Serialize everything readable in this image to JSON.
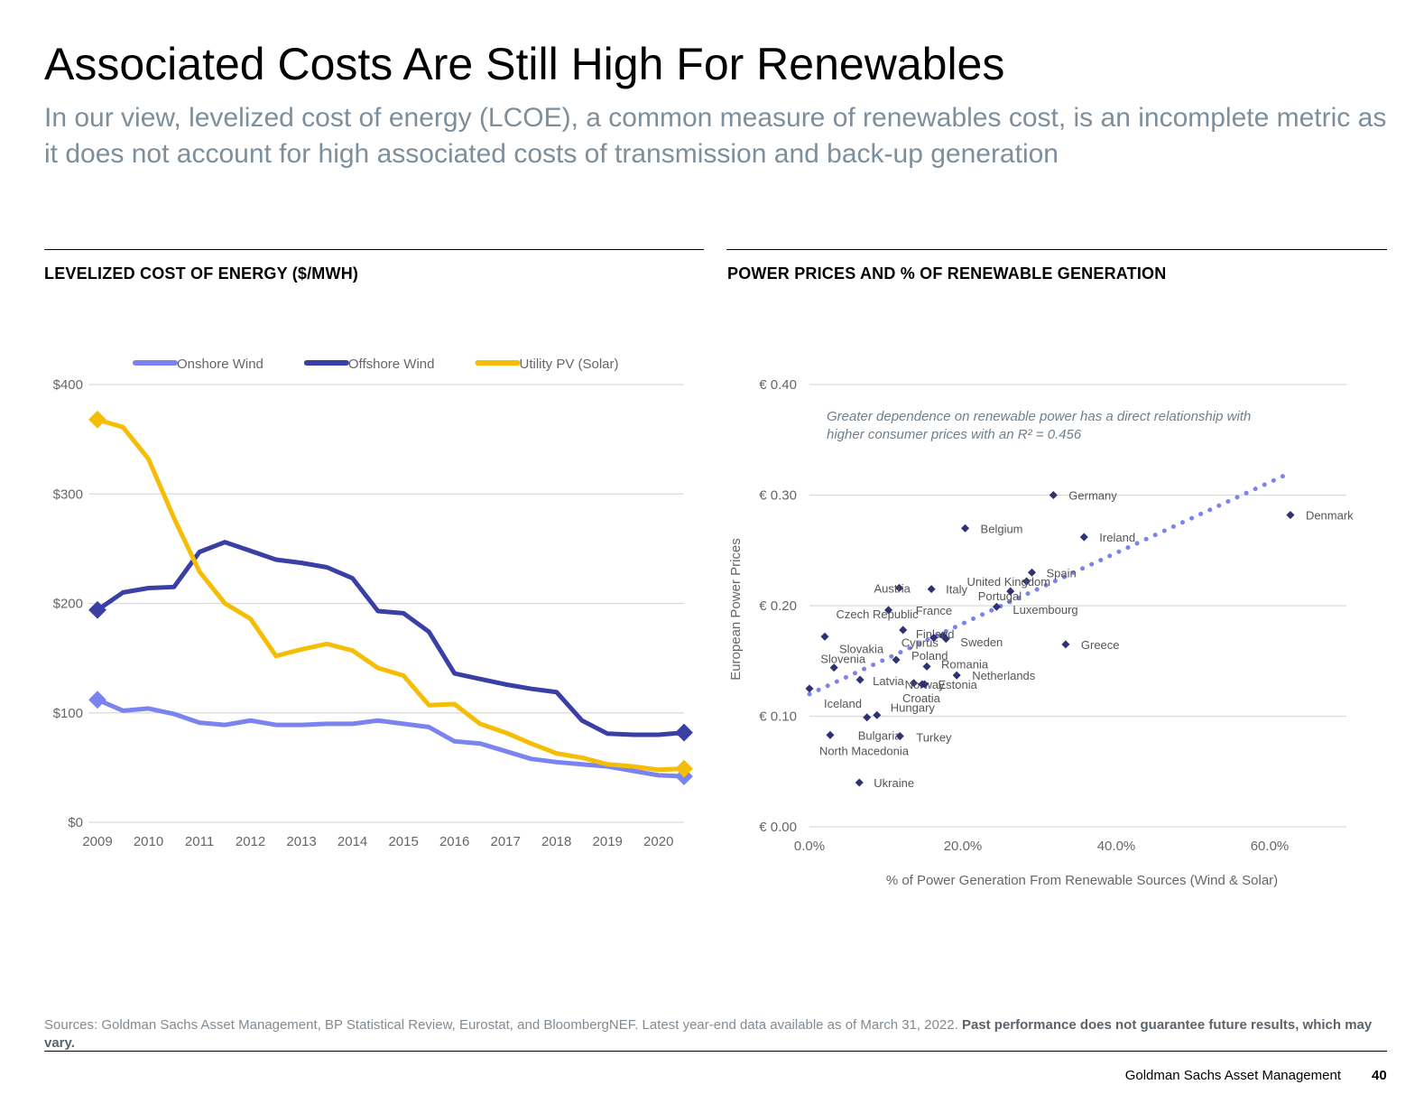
{
  "page": {
    "title": "Associated Costs Are Still High For Renewables",
    "subtitle": "In our view, levelized cost of energy (LCOE), a common measure of renewables cost, is an incomplete metric as it does not account for high associated costs of transmission and back-up generation",
    "footnote_plain": "Sources: Goldman Sachs Asset Management, BP Statistical Review, Eurostat, and BloombergNEF. Latest year-end data available as of March 31, 2022.",
    "footnote_bold": "Past performance does not guarantee future results, which may vary.",
    "footer_company": "Goldman Sachs Asset Management",
    "footer_page": "40"
  },
  "colors": {
    "onshore": "#7b83f0",
    "offshore": "#3a3fa6",
    "solar": "#f5bd06",
    "grid": "#d9d9d9",
    "point": "#2e3273",
    "trend": "#7b83f0"
  },
  "chart_data": [
    {
      "type": "line",
      "title": "LEVELIZED COST OF ENERGY ($/MWH)",
      "x": [
        2009,
        2009.5,
        2010,
        2010.5,
        2011,
        2011.5,
        2012,
        2012.5,
        2013,
        2013.5,
        2014,
        2014.5,
        2015,
        2015.5,
        2016,
        2016.5,
        2017,
        2017.5,
        2018,
        2018.5,
        2019,
        2019.5,
        2020,
        2020.5
      ],
      "x_ticks": [
        "2009",
        "2010",
        "2011",
        "2012",
        "2013",
        "2014",
        "2015",
        "2016",
        "2017",
        "2018",
        "2019",
        "2020"
      ],
      "y_ticks": [
        "$0",
        "$100",
        "$200",
        "$300",
        "$400"
      ],
      "ylim": [
        0,
        400
      ],
      "grid": true,
      "legend": "top",
      "series": [
        {
          "name": "Onshore Wind",
          "key": "onshore",
          "values": [
            112,
            102,
            104,
            99,
            91,
            89,
            93,
            89,
            89,
            90,
            90,
            93,
            90,
            87,
            74,
            72,
            65,
            58,
            55,
            53,
            51,
            47,
            43,
            42
          ]
        },
        {
          "name": "Offshore Wind",
          "key": "offshore",
          "values": [
            194,
            210,
            214,
            215,
            247,
            256,
            248,
            240,
            237,
            233,
            223,
            193,
            191,
            174,
            136,
            131,
            126,
            122,
            119,
            93,
            81,
            80,
            80,
            82
          ]
        },
        {
          "name": "Utility PV (Solar)",
          "key": "solar",
          "values": [
            368,
            361,
            332,
            278,
            229,
            200,
            186,
            152,
            158,
            163,
            157,
            141,
            134,
            107,
            108,
            90,
            82,
            72,
            63,
            59,
            53,
            51,
            48,
            49
          ]
        }
      ]
    },
    {
      "type": "scatter",
      "title": "POWER PRICES AND % OF RENEWABLE GENERATION",
      "xlabel": "% of Power Generation From Renewable Sources (Wind & Solar)",
      "ylabel": "European Power Prices",
      "xlim": [
        0,
        0.7
      ],
      "ylim": [
        0,
        0.4
      ],
      "x_ticks": [
        "0.0%",
        "20.0%",
        "40.0%",
        "60.0%"
      ],
      "y_ticks": [
        "€ 0.00",
        "€ 0.10",
        "€ 0.20",
        "€ 0.30",
        "€ 0.40"
      ],
      "annotation": [
        "Greater dependence on renewable power has a direct relationship with",
        "higher consumer prices with an R² = 0.456"
      ],
      "trendline": {
        "x": [
          0,
          0.62
        ],
        "y": [
          0.12,
          0.318
        ]
      },
      "points": [
        {
          "name": "Germany",
          "x": 0.318,
          "y": 0.3
        },
        {
          "name": "Denmark",
          "x": 0.627,
          "y": 0.282
        },
        {
          "name": "Belgium",
          "x": 0.203,
          "y": 0.27
        },
        {
          "name": "Ireland",
          "x": 0.358,
          "y": 0.262
        },
        {
          "name": "Spain",
          "x": 0.29,
          "y": 0.23
        },
        {
          "name": "United Kingdom",
          "x": 0.283,
          "y": 0.222
        },
        {
          "name": "Austria",
          "x": 0.117,
          "y": 0.216
        },
        {
          "name": "Italy",
          "x": 0.159,
          "y": 0.215
        },
        {
          "name": "Portugal",
          "x": 0.262,
          "y": 0.213
        },
        {
          "name": "Luxembourg",
          "x": 0.244,
          "y": 0.199
        },
        {
          "name": "Czech Republic",
          "x": 0.103,
          "y": 0.196
        },
        {
          "name": "France",
          "x": 0.122,
          "y": 0.178
        },
        {
          "name": "Finland",
          "x": 0.174,
          "y": 0.173
        },
        {
          "name": "Cyprus",
          "x": 0.162,
          "y": 0.171
        },
        {
          "name": "Sweden",
          "x": 0.178,
          "y": 0.17
        },
        {
          "name": "Slovakia",
          "x": 0.02,
          "y": 0.172
        },
        {
          "name": "Greece",
          "x": 0.334,
          "y": 0.165
        },
        {
          "name": "Slovenia",
          "x": 0.032,
          "y": 0.144
        },
        {
          "name": "Poland",
          "x": 0.113,
          "y": 0.151
        },
        {
          "name": "Latvia",
          "x": 0.066,
          "y": 0.133
        },
        {
          "name": "Norway",
          "x": 0.136,
          "y": 0.13
        },
        {
          "name": "Romania",
          "x": 0.153,
          "y": 0.145
        },
        {
          "name": "Netherlands",
          "x": 0.192,
          "y": 0.137
        },
        {
          "name": "Estonia",
          "x": 0.15,
          "y": 0.129
        },
        {
          "name": "Croatia",
          "x": 0.147,
          "y": 0.129
        },
        {
          "name": "Iceland",
          "x": 0.0,
          "y": 0.125
        },
        {
          "name": "Hungary",
          "x": 0.088,
          "y": 0.101
        },
        {
          "name": "Bulgaria",
          "x": 0.075,
          "y": 0.099
        },
        {
          "name": "North Macedonia",
          "x": 0.027,
          "y": 0.083
        },
        {
          "name": "Turkey",
          "x": 0.118,
          "y": 0.082
        },
        {
          "name": "Ukraine",
          "x": 0.065,
          "y": 0.04
        }
      ]
    }
  ]
}
